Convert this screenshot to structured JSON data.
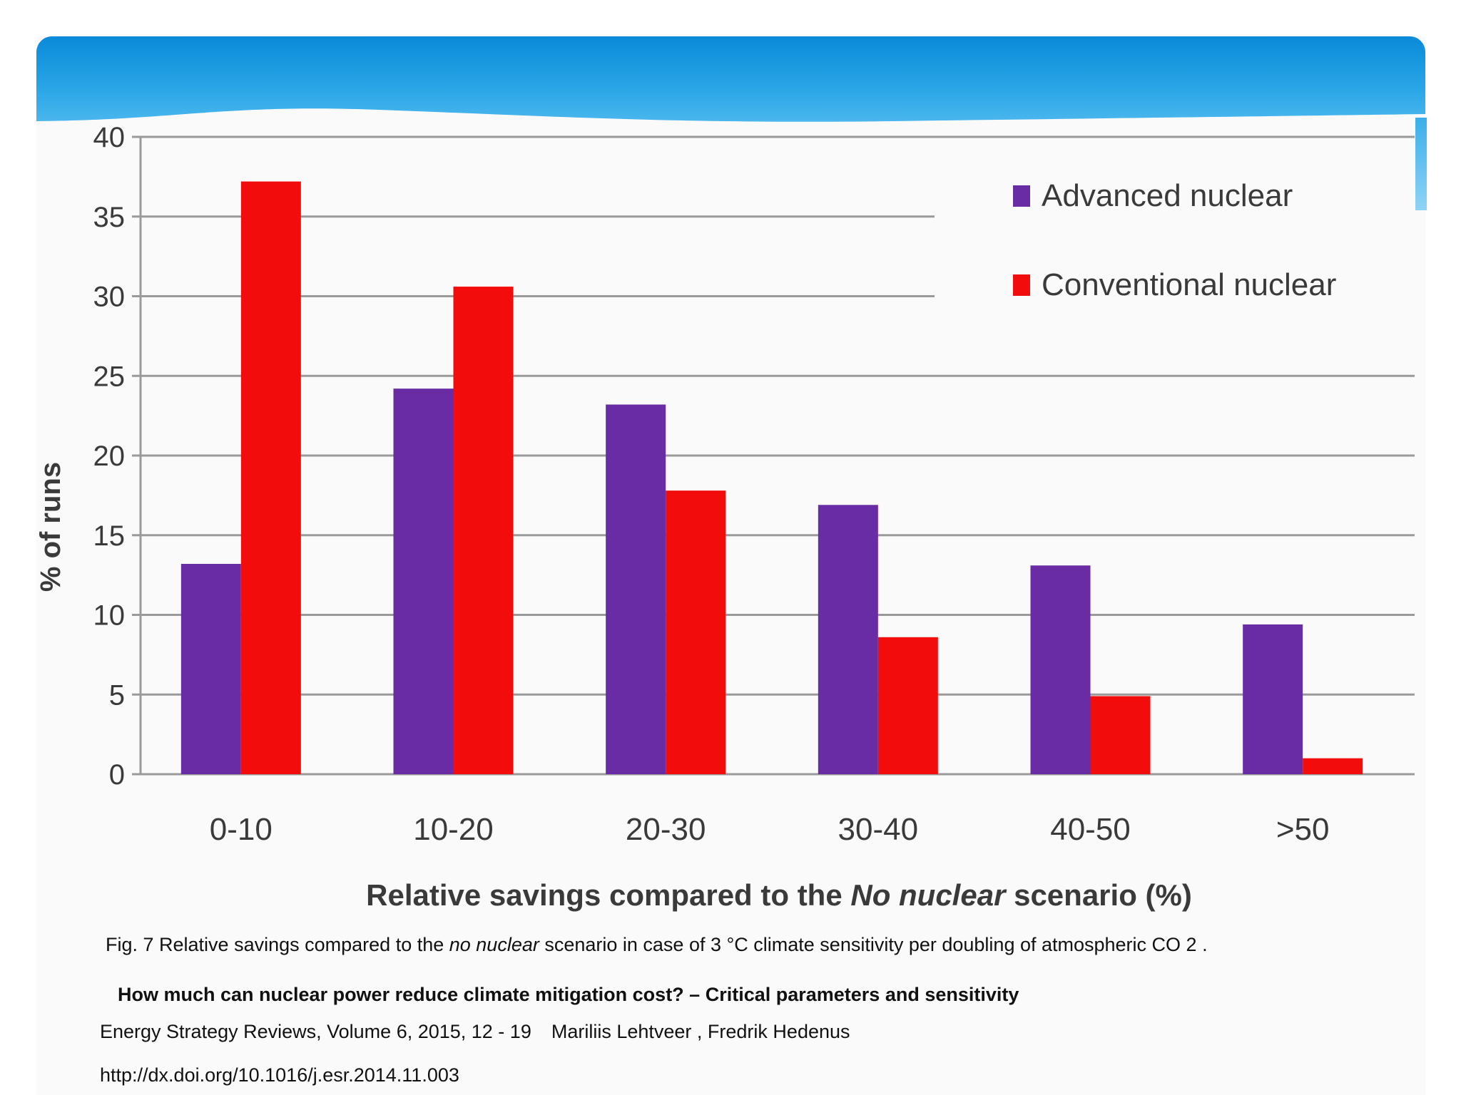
{
  "colors": {
    "header": "#1a9be0",
    "advanced": "#6a2ca5",
    "conventional": "#f20c0c",
    "grid": "#9a9a9a"
  },
  "chart_data": {
    "type": "bar",
    "categories": [
      "0-10",
      "10-20",
      "20-30",
      "30-40",
      "40-50",
      ">50"
    ],
    "series": [
      {
        "name": "Advanced nuclear",
        "values": [
          13.2,
          24.2,
          23.2,
          16.9,
          13.1,
          9.4
        ]
      },
      {
        "name": "Conventional nuclear",
        "values": [
          37.2,
          30.6,
          17.8,
          8.6,
          4.9,
          1.0
        ]
      }
    ],
    "yticks": [
      0,
      5,
      10,
      15,
      20,
      25,
      30,
      35,
      40
    ],
    "ylim": [
      0,
      40
    ],
    "ylabel": "% of runs",
    "xlabel_pre": "Relative savings compared to the ",
    "xlabel_italic": "No nuclear",
    "xlabel_post": " scenario (%)",
    "grid": true,
    "legend_position": "top-right"
  },
  "caption": {
    "prefix": "Fig. 7 Relative savings compared to the ",
    "italic": "no nuclear",
    "suffix": " scenario in case of 3 °C climate sensitivity per doubling of atmospheric CO 2 ."
  },
  "reference": {
    "title": "How much can nuclear power reduce climate mitigation cost? – Critical parameters and sensitivity",
    "journal": "Energy Strategy Reviews, Volume 6, 2015, 12 - 19",
    "authors": "Mariliis  Lehtveer , Fredrik  Hedenus",
    "doi": "http://dx.doi.org/10.1016/j.esr.2014.11.003"
  }
}
